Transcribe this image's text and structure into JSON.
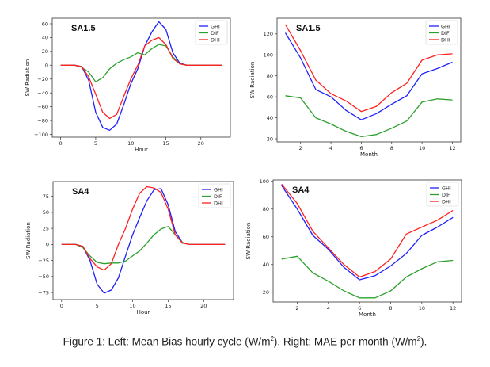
{
  "colors": {
    "GHI": "#1f1fff",
    "DIF": "#2ca02c",
    "DHI": "#ff2020"
  },
  "caption": {
    "part1": "Figure 1: Left: Mean Bias hourly cycle (W/m",
    "sup1": "2",
    "part2": "). Right: MAE per month (W/m",
    "sup2": "2",
    "part3": ")."
  },
  "chart_data": [
    {
      "type": "line",
      "title": "SA1.5",
      "xlabel": "Hour",
      "ylabel": "SW Radiation",
      "xlim": [
        -1.2,
        24.2
      ],
      "ylim": [
        -104,
        68
      ],
      "xticks": [
        0,
        5,
        10,
        15,
        20
      ],
      "yticks": [
        -100,
        -80,
        -60,
        -40,
        -20,
        0,
        20,
        40,
        60
      ],
      "legend": "top-right",
      "x": [
        0,
        1,
        2,
        3,
        4,
        5,
        6,
        7,
        8,
        9,
        10,
        11,
        12,
        13,
        14,
        15,
        16,
        17,
        18,
        19,
        20,
        21,
        22,
        23
      ],
      "series": [
        {
          "name": "GHI",
          "values": [
            0,
            0,
            0,
            -2,
            -22,
            -68,
            -90,
            -94,
            -85,
            -57,
            -27,
            -5,
            28,
            48,
            63,
            52,
            18,
            3,
            0,
            0,
            0,
            0,
            0,
            0
          ]
        },
        {
          "name": "DIF",
          "values": [
            0,
            0,
            0,
            -3,
            -10,
            -24,
            -18,
            -5,
            3,
            8,
            12,
            18,
            15,
            24,
            30,
            28,
            12,
            2,
            0,
            0,
            0,
            0,
            0,
            0
          ]
        },
        {
          "name": "DHI",
          "values": [
            0,
            0,
            0,
            -2,
            -17,
            -42,
            -68,
            -77,
            -71,
            -45,
            -20,
            0,
            28,
            36,
            40,
            30,
            10,
            2,
            0,
            0,
            0,
            0,
            0,
            0
          ]
        }
      ]
    },
    {
      "type": "line",
      "title": "SA1.5",
      "xlabel": "Month",
      "ylabel": "SW Radiation",
      "xlim": [
        0.45,
        12.55
      ],
      "ylim": [
        17,
        135
      ],
      "xticks": [
        2,
        4,
        6,
        8,
        10,
        12
      ],
      "yticks": [
        20,
        40,
        60,
        80,
        100,
        120
      ],
      "legend": "top-right",
      "x": [
        1,
        2,
        3,
        4,
        5,
        6,
        7,
        8,
        9,
        10,
        11,
        12
      ],
      "series": [
        {
          "name": "GHI",
          "values": [
            121,
            97,
            67,
            60,
            47,
            38,
            44,
            53,
            61,
            82,
            87,
            93
          ]
        },
        {
          "name": "DIF",
          "values": [
            61,
            59,
            40,
            34,
            27,
            22,
            24,
            30,
            37,
            55,
            58,
            57
          ]
        },
        {
          "name": "DHI",
          "values": [
            129,
            104,
            76,
            63,
            56,
            46,
            51,
            64,
            73,
            95,
            100,
            101
          ]
        }
      ]
    },
    {
      "type": "line",
      "title": "SA4",
      "xlabel": "Hour",
      "ylabel": "SW Radiation",
      "xlim": [
        -1.2,
        24.2
      ],
      "ylim": [
        -86,
        98
      ],
      "xticks": [
        0,
        5,
        10,
        15,
        20
      ],
      "yticks": [
        -75,
        -50,
        -25,
        0,
        25,
        50,
        75
      ],
      "legend": "top-right",
      "x": [
        0,
        1,
        2,
        3,
        4,
        5,
        6,
        7,
        8,
        9,
        10,
        11,
        12,
        13,
        14,
        15,
        16,
        17,
        18,
        19,
        20,
        21,
        22,
        23
      ],
      "series": [
        {
          "name": "GHI",
          "values": [
            0,
            0,
            0,
            -3,
            -25,
            -62,
            -76,
            -71,
            -52,
            -18,
            15,
            42,
            68,
            85,
            87,
            62,
            20,
            3,
            0,
            0,
            0,
            0,
            0,
            0
          ]
        },
        {
          "name": "DIF",
          "values": [
            0,
            0,
            0,
            -5,
            -18,
            -28,
            -30,
            -29,
            -29,
            -26,
            -18,
            -10,
            2,
            15,
            24,
            28,
            15,
            3,
            0,
            0,
            0,
            0,
            0,
            0
          ]
        },
        {
          "name": "DHI",
          "values": [
            0,
            0,
            0,
            -3,
            -22,
            -35,
            -40,
            -30,
            0,
            25,
            55,
            80,
            90,
            88,
            81,
            55,
            15,
            2,
            0,
            0,
            0,
            0,
            0,
            0
          ]
        }
      ]
    },
    {
      "type": "line",
      "title": "SA4",
      "xlabel": "Month",
      "ylabel": "SW Radiation",
      "xlim": [
        0.45,
        12.55
      ],
      "ylim": [
        13,
        101
      ],
      "xticks": [
        2,
        4,
        6,
        8,
        10,
        12
      ],
      "yticks": [
        20,
        40,
        60,
        80,
        100
      ],
      "legend": "top-right",
      "x": [
        1,
        2,
        3,
        4,
        5,
        6,
        7,
        8,
        9,
        10,
        11,
        12
      ],
      "series": [
        {
          "name": "GHI",
          "values": [
            97,
            80,
            61,
            51,
            38,
            29,
            32,
            39,
            48,
            61,
            67,
            74
          ]
        },
        {
          "name": "DIF",
          "values": [
            44,
            46,
            34,
            28,
            21,
            16,
            16,
            21,
            31,
            37,
            42,
            43
          ]
        },
        {
          "name": "DHI",
          "values": [
            98,
            84,
            64,
            52,
            40,
            31,
            35,
            44,
            62,
            67,
            72,
            79
          ]
        }
      ]
    }
  ]
}
